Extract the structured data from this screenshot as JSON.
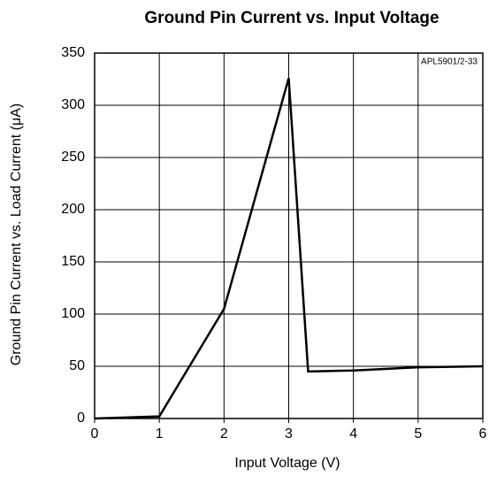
{
  "chart_data": {
    "type": "line",
    "title": "Ground Pin Current vs. Input Voltage",
    "annotation": "APL5901/2-33",
    "x_label": "Input Voltage (V)",
    "y_label": "Ground Pin Current vs. Load Current (μA)",
    "x": [
      0,
      1,
      2,
      3,
      3.3,
      4,
      5,
      6
    ],
    "values": [
      0,
      2,
      105,
      326,
      45,
      46,
      49,
      50
    ],
    "color": "#000000",
    "xlim": [
      0,
      6
    ],
    "xticks": [
      0,
      1,
      2,
      3,
      4,
      5,
      6
    ],
    "ylim": [
      0,
      350
    ],
    "yticks": [
      0,
      50,
      100,
      150,
      200,
      250,
      300,
      350
    ],
    "grid": true
  }
}
